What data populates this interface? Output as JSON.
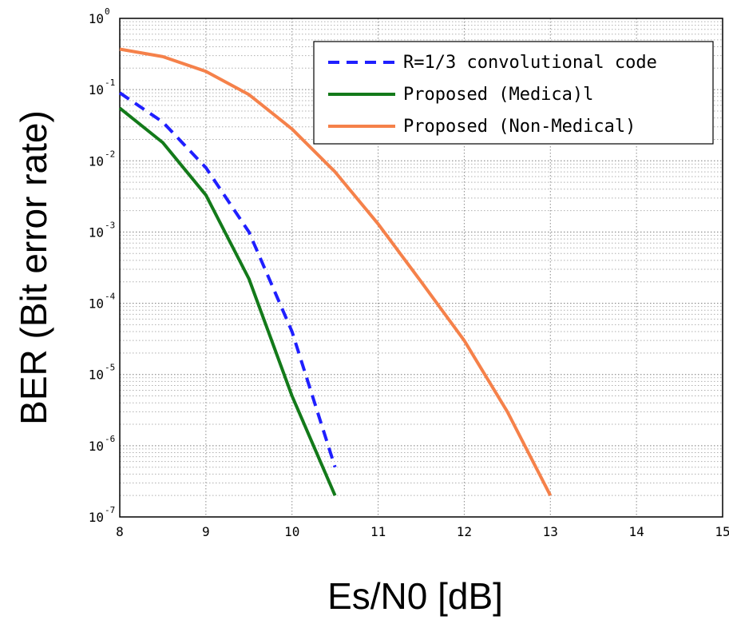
{
  "chart_data": {
    "type": "line",
    "xlabel": "Es/N0 [dB]",
    "ylabel": "BER (Bit error rate)",
    "xlim": [
      8,
      15
    ],
    "ylim": [
      1e-07,
      1
    ],
    "yscale": "log",
    "grid": true,
    "legend_position": "top-right",
    "x_ticks": [
      8,
      9,
      10,
      11,
      12,
      13,
      14,
      15
    ],
    "y_ticks": [
      {
        "base": "10",
        "exp": "0",
        "value": 1
      },
      {
        "base": "10",
        "exp": "-1",
        "value": 0.1
      },
      {
        "base": "10",
        "exp": "-2",
        "value": 0.01
      },
      {
        "base": "10",
        "exp": "-3",
        "value": 0.001
      },
      {
        "base": "10",
        "exp": "-4",
        "value": 0.0001
      },
      {
        "base": "10",
        "exp": "-5",
        "value": 1e-05
      },
      {
        "base": "10",
        "exp": "-6",
        "value": 1e-06
      },
      {
        "base": "10",
        "exp": "-7",
        "value": 1e-07
      }
    ],
    "series": [
      {
        "name": "R=1/3 convolutional code",
        "color": "#1f1fff",
        "dash": true,
        "x": [
          8,
          8.5,
          9,
          9.5,
          10,
          10.5
        ],
        "y": [
          0.09,
          0.035,
          0.008,
          0.001,
          4e-05,
          5e-07
        ]
      },
      {
        "name": "Proposed (Medica)l",
        "color": "#137a1a",
        "dash": false,
        "x": [
          8,
          8.5,
          9,
          9.5,
          10,
          10.5
        ],
        "y": [
          0.055,
          0.018,
          0.0033,
          0.00022,
          5e-06,
          2e-07
        ]
      },
      {
        "name": "Proposed (Non-Medical)",
        "color": "#f5814a",
        "dash": false,
        "x": [
          8,
          8.5,
          9,
          9.5,
          10,
          10.5,
          11,
          11.5,
          12,
          12.5,
          13
        ],
        "y": [
          0.37,
          0.29,
          0.18,
          0.085,
          0.028,
          0.007,
          0.0013,
          0.0002,
          3e-05,
          3e-06,
          2e-07
        ]
      }
    ]
  }
}
